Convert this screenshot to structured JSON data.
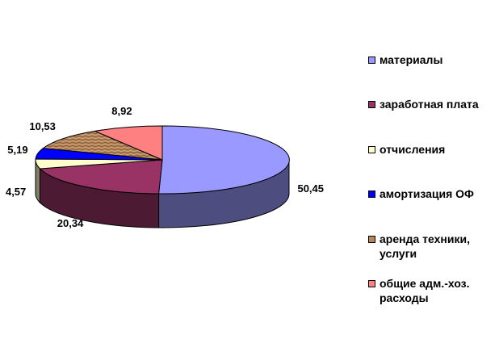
{
  "chart_data": {
    "type": "pie",
    "categories": [
      "материалы",
      "заработная плата",
      "отчисления",
      "амортизация ОФ",
      "аренда техники, услуги",
      "общие адм.-хоз. расходы"
    ],
    "values": [
      50.45,
      20.34,
      4.57,
      5.19,
      10.53,
      8.92
    ],
    "value_labels": [
      "50,45",
      "20,34",
      "4,57",
      "5,19",
      "10,53",
      "8,92"
    ],
    "colors": [
      "#9999ff",
      "#993366",
      "#ffffcc",
      "#0000ff",
      "#b5865a",
      "#ff8080"
    ],
    "side_colors": [
      "#4d4d80",
      "#4d1a33",
      "#808066",
      "#000080",
      "#5a432d",
      "#804040"
    ],
    "legend_labels": [
      "материалы",
      "заработная плата",
      "отчисления",
      "амортизация ОФ",
      "аренда техники,\nуслуги",
      "общие адм.-хоз.\nрасходы"
    ],
    "legend_position": "right",
    "three_d": true
  }
}
